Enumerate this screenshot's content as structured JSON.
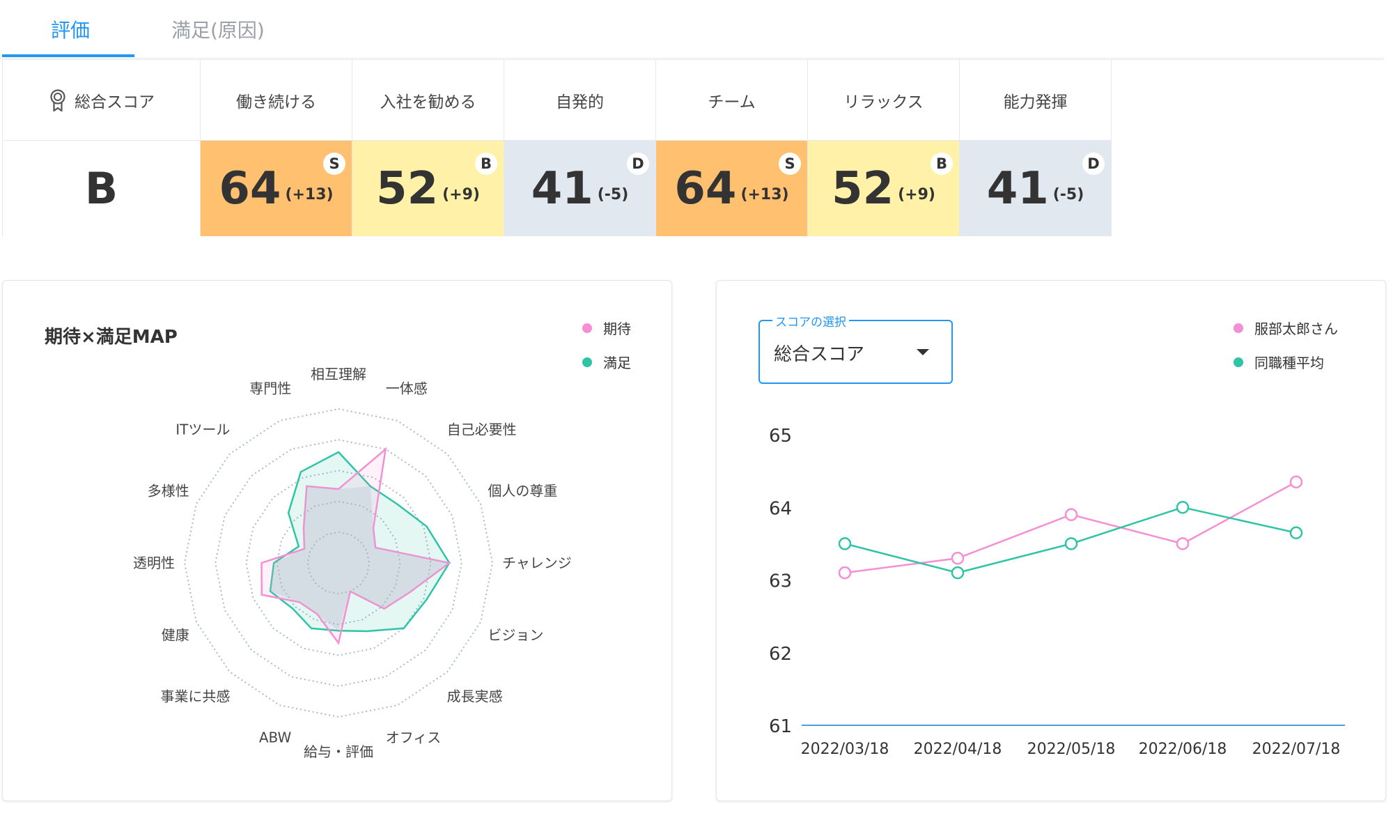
{
  "tabs": [
    {
      "label": "評価",
      "active": true
    },
    {
      "label": "満足(原因)",
      "active": false
    }
  ],
  "colors": {
    "accent": "#2196f3",
    "expectation": "#f48fd3",
    "satisfaction": "#2ec4a5",
    "grade_S": "#ffc170",
    "grade_B": "#fff2a8",
    "grade_D": "#e1e8ef"
  },
  "score_table": {
    "overall": {
      "label": "総合スコア",
      "icon": "award-ribbon-icon",
      "grade": "B"
    },
    "items": [
      {
        "label": "働き続ける",
        "score": "64",
        "diff": "(+13)",
        "grade": "S"
      },
      {
        "label": "入社を勧める",
        "score": "52",
        "diff": "(+9)",
        "grade": "B"
      },
      {
        "label": "自発的",
        "score": "41",
        "diff": "(-5)",
        "grade": "D"
      },
      {
        "label": "チーム",
        "score": "64",
        "diff": "(+13)",
        "grade": "S"
      },
      {
        "label": "リラックス",
        "score": "52",
        "diff": "(+9)",
        "grade": "B"
      },
      {
        "label": "能力発揮",
        "score": "41",
        "diff": "(-5)",
        "grade": "D"
      }
    ]
  },
  "radar_card": {
    "title": "期待×満足MAP",
    "legend": [
      {
        "name": "期待",
        "color": "#f48fd3"
      },
      {
        "name": "満足",
        "color": "#2ec4a5"
      }
    ]
  },
  "line_card": {
    "select": {
      "label": "スコアの選択",
      "value": "総合スコア"
    },
    "legend": [
      {
        "name": "服部太郎さん",
        "color": "#f48fd3"
      },
      {
        "name": "同職種平均",
        "color": "#2ec4a5"
      }
    ]
  },
  "chart_data": [
    {
      "type": "radar",
      "title": "期待×満足MAP",
      "categories": [
        "相互理解",
        "一体感",
        "自己必要性",
        "個人の尊重",
        "チャレンジ",
        "ビジョン",
        "成長実感",
        "オフィス",
        "給与・評価",
        "ABW",
        "事業に共感",
        "健康",
        "透明性",
        "多様性",
        "ITツール",
        "専門性"
      ],
      "range": [
        0,
        5
      ],
      "grid_levels": 4,
      "series": [
        {
          "name": "期待",
          "values": [
            2.4,
            4.0,
            1.6,
            1.3,
            3.6,
            2.5,
            2.1,
            1.0,
            2.6,
            1.8,
            1.8,
            2.7,
            2.5,
            1.2,
            1.6,
            2.7
          ]
        },
        {
          "name": "満足",
          "values": [
            3.6,
            2.7,
            2.7,
            3.1,
            3.6,
            3.1,
            3.0,
            2.4,
            2.2,
            2.3,
            2.1,
            2.4,
            2.1,
            1.4,
            2.3,
            3.2
          ]
        }
      ]
    },
    {
      "type": "line",
      "categories": [
        "2022/03/18",
        "2022/04/18",
        "2022/05/18",
        "2022/06/18",
        "2022/07/18"
      ],
      "ylim": [
        61,
        65
      ],
      "yticks": [
        65,
        64,
        63,
        62,
        61
      ],
      "series": [
        {
          "name": "服部太郎さん",
          "values": [
            63.1,
            63.3,
            63.9,
            63.5,
            64.35
          ]
        },
        {
          "name": "同職種平均",
          "values": [
            63.5,
            63.1,
            63.5,
            64.0,
            63.65
          ]
        }
      ]
    }
  ]
}
